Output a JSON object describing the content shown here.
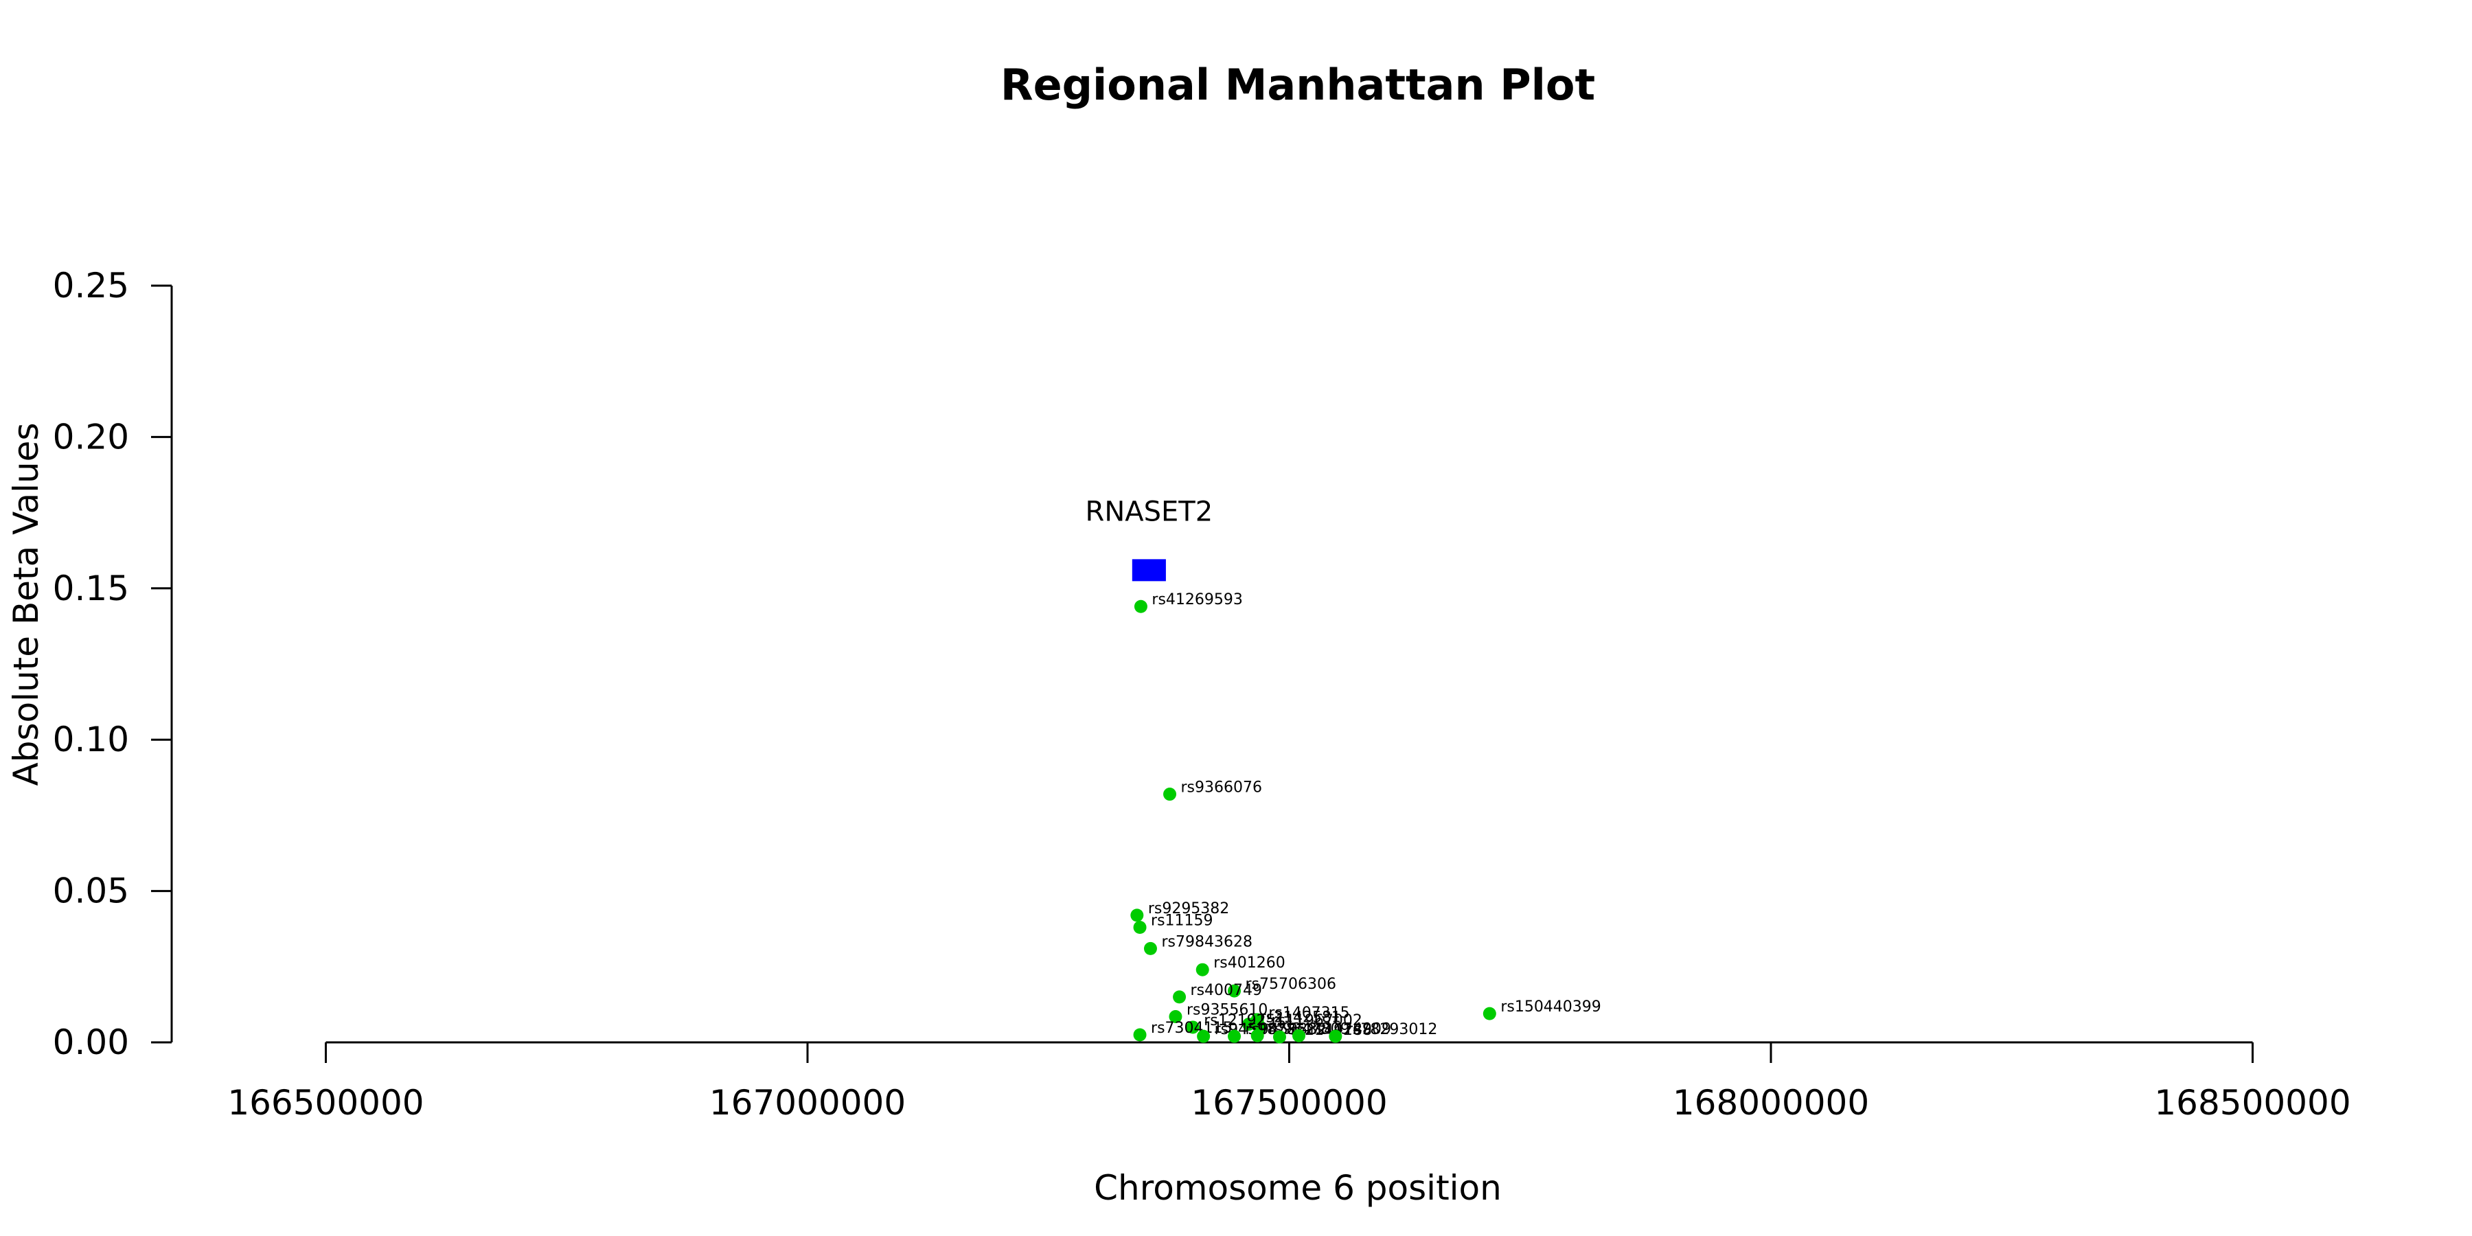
{
  "chart_data": {
    "type": "scatter",
    "title": "Regional Manhattan Plot",
    "xlabel": "Chromosome 6 position",
    "ylabel": "Absolute Beta Values",
    "xlim": [
      166340000,
      168660000
    ],
    "ylim": [
      0,
      0.25
    ],
    "x_ticks": [
      166500000,
      167000000,
      167500000,
      168000000,
      168500000
    ],
    "x_tick_labels": [
      "166500000",
      "167000000",
      "167500000",
      "168000000",
      "168500000"
    ],
    "y_ticks": [
      0,
      0.05,
      0.1,
      0.15,
      0.2,
      0.25
    ],
    "y_tick_labels": [
      "0.00",
      "0.05",
      "0.10",
      "0.15",
      "0.20",
      "0.25"
    ],
    "grid": false,
    "point_color": "#00cc00",
    "gene_color": "#0000ff",
    "genes": [
      {
        "name": "RNASET2",
        "start": 167337000,
        "end": 167372000,
        "y": 0.156
      }
    ],
    "points": [
      {
        "label": "rs41269593",
        "x": 167346000,
        "y": 0.144
      },
      {
        "label": "rs9366076",
        "x": 167376000,
        "y": 0.082
      },
      {
        "label": "rs9295382",
        "x": 167342000,
        "y": 0.042
      },
      {
        "label": "rs11159",
        "x": 167345000,
        "y": 0.038
      },
      {
        "label": "rs79843628",
        "x": 167356000,
        "y": 0.031
      },
      {
        "label": "rs401260",
        "x": 167410000,
        "y": 0.024
      },
      {
        "label": "rs75706306",
        "x": 167443000,
        "y": 0.017
      },
      {
        "label": "rs400749",
        "x": 167386000,
        "y": 0.015
      },
      {
        "label": "rs150440399",
        "x": 167708000,
        "y": 0.0095
      },
      {
        "label": "rs9355610",
        "x": 167382000,
        "y": 0.0085
      },
      {
        "label": "rs1407315",
        "x": 167467000,
        "y": 0.0075
      },
      {
        "label": "rs2142581",
        "x": 167458000,
        "y": 0.006
      },
      {
        "label": "rs11967002",
        "x": 167470000,
        "y": 0.005
      },
      {
        "label": "rs12192511",
        "x": 167400000,
        "y": 0.005
      },
      {
        "label": "rs7304115",
        "x": 167345000,
        "y": 0.0025
      },
      {
        "label": "rs9459878",
        "x": 167411000,
        "y": 0.002
      },
      {
        "label": "rs9459882",
        "x": 167443000,
        "y": 0.002
      },
      {
        "label": "rs9347809",
        "x": 167467000,
        "y": 0.0022
      },
      {
        "label": "rs2149288",
        "x": 167490000,
        "y": 0.0018
      },
      {
        "label": "rs1474909",
        "x": 167510000,
        "y": 0.0022
      },
      {
        "label": "rs78293012",
        "x": 167548000,
        "y": 0.002
      }
    ]
  }
}
